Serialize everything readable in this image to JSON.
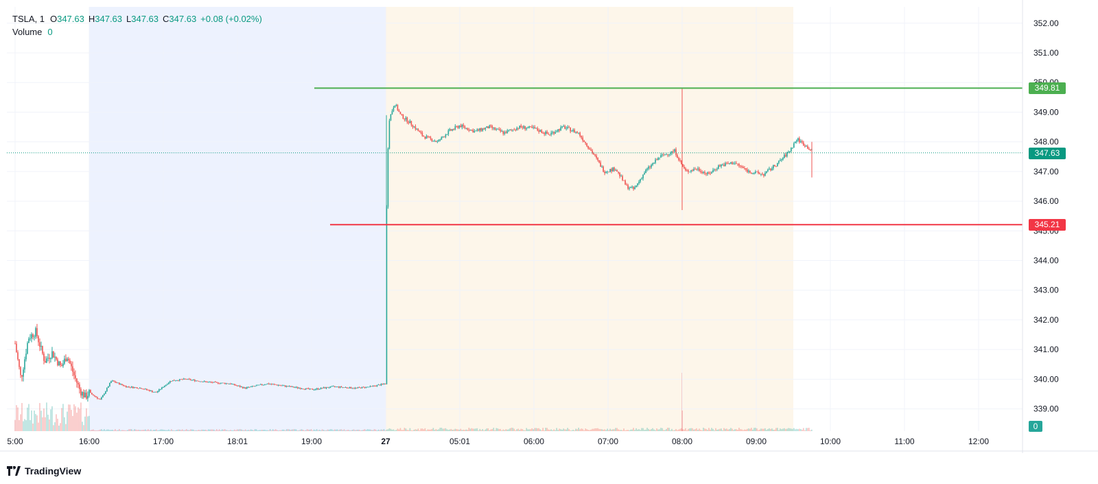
{
  "legend": {
    "symbol": "TSLA, 1",
    "open_label": "O",
    "open": "347.63",
    "high_label": "H",
    "high": "347.63",
    "low_label": "L",
    "low": "347.63",
    "close_label": "C",
    "close": "347.63",
    "change": "+0.08 (+0.02%)",
    "volume_label": "Volume",
    "volume": "0"
  },
  "brand": {
    "name": "TradingView"
  },
  "colors": {
    "up": "#26a69a",
    "down": "#ef5350",
    "premarket_bg": "#edf2fe",
    "regular_bg": "#fdf6ea",
    "green_line": "#4caf50",
    "red_line": "#f23645",
    "last_price": "#089981"
  },
  "chart_data": {
    "type": "candlestick",
    "symbol": "TSLA",
    "interval": "1",
    "y_axis": {
      "ticks": [
        339,
        340,
        341,
        342,
        343,
        344,
        345,
        346,
        347,
        348,
        349,
        350,
        351,
        352
      ],
      "tick_labels": [
        "339.00",
        "340.00",
        "341.00",
        "342.00",
        "343.00",
        "344.00",
        "345.00",
        "346.00",
        "347.00",
        "348.00",
        "349.00",
        "350.00",
        "351.00",
        "352.00"
      ],
      "range": [
        338.25,
        352.55
      ]
    },
    "x_axis": {
      "tick_labels": [
        "5:00",
        "16:00",
        "17:00",
        "18:01",
        "19:00",
        "27",
        "05:01",
        "06:00",
        "07:00",
        "08:00",
        "09:00",
        "10:00",
        "11:00",
        "12:00"
      ],
      "bold_label": "27"
    },
    "sessions": [
      {
        "name": "premarket-evening",
        "from": "16:00",
        "to": "27"
      },
      {
        "name": "premarket-morning",
        "from": "27",
        "to": "09:30"
      }
    ],
    "horizontal_lines": [
      {
        "name": "resistance",
        "value": 349.81,
        "label": "349.81"
      },
      {
        "name": "support",
        "value": 345.21,
        "label": "345.21"
      }
    ],
    "last_price": {
      "value": 347.63,
      "label": "347.63"
    },
    "volume_tag": "0",
    "price_path": [
      {
        "t": 0.0,
        "p": 341.2
      },
      {
        "t": 0.08,
        "p": 340.0
      },
      {
        "t": 0.18,
        "p": 341.4
      },
      {
        "t": 0.28,
        "p": 341.6
      },
      {
        "t": 0.4,
        "p": 340.6
      },
      {
        "t": 0.5,
        "p": 340.9
      },
      {
        "t": 0.62,
        "p": 340.4
      },
      {
        "t": 0.7,
        "p": 340.8
      },
      {
        "t": 0.8,
        "p": 340.1
      },
      {
        "t": 0.88,
        "p": 339.6
      },
      {
        "t": 0.95,
        "p": 339.4
      },
      {
        "t": 1.0,
        "p": 339.55
      },
      {
        "t": 1.15,
        "p": 339.3
      },
      {
        "t": 1.3,
        "p": 339.95
      },
      {
        "t": 1.5,
        "p": 339.75
      },
      {
        "t": 1.7,
        "p": 339.7
      },
      {
        "t": 1.9,
        "p": 339.55
      },
      {
        "t": 2.1,
        "p": 339.95
      },
      {
        "t": 2.3,
        "p": 340.0
      },
      {
        "t": 2.6,
        "p": 339.9
      },
      {
        "t": 2.9,
        "p": 339.85
      },
      {
        "t": 3.1,
        "p": 339.7
      },
      {
        "t": 3.4,
        "p": 339.85
      },
      {
        "t": 3.7,
        "p": 339.75
      },
      {
        "t": 4.0,
        "p": 339.65
      },
      {
        "t": 4.3,
        "p": 339.75
      },
      {
        "t": 4.6,
        "p": 339.7
      },
      {
        "t": 4.8,
        "p": 339.75
      },
      {
        "t": 5.0,
        "p": 339.85
      },
      {
        "t": 5.01,
        "p": 345.4
      },
      {
        "t": 5.04,
        "p": 348.7
      },
      {
        "t": 5.12,
        "p": 349.3
      },
      {
        "t": 5.2,
        "p": 348.9
      },
      {
        "t": 5.35,
        "p": 348.6
      },
      {
        "t": 5.5,
        "p": 348.2
      },
      {
        "t": 5.7,
        "p": 348.0
      },
      {
        "t": 5.85,
        "p": 348.35
      },
      {
        "t": 6.0,
        "p": 348.55
      },
      {
        "t": 6.2,
        "p": 348.35
      },
      {
        "t": 6.4,
        "p": 348.5
      },
      {
        "t": 6.6,
        "p": 348.3
      },
      {
        "t": 6.8,
        "p": 348.5
      },
      {
        "t": 7.0,
        "p": 348.45
      },
      {
        "t": 7.2,
        "p": 348.25
      },
      {
        "t": 7.4,
        "p": 348.5
      },
      {
        "t": 7.6,
        "p": 348.3
      },
      {
        "t": 7.8,
        "p": 347.6
      },
      {
        "t": 7.95,
        "p": 347.0
      },
      {
        "t": 8.1,
        "p": 347.1
      },
      {
        "t": 8.25,
        "p": 346.5
      },
      {
        "t": 8.35,
        "p": 346.4
      },
      {
        "t": 8.5,
        "p": 347.0
      },
      {
        "t": 8.7,
        "p": 347.5
      },
      {
        "t": 8.9,
        "p": 347.7
      },
      {
        "t": 9.0,
        "p": 347.2
      },
      {
        "t": 9.05,
        "p": 347.0
      },
      {
        "t": 9.2,
        "p": 347.1
      },
      {
        "t": 9.35,
        "p": 346.9
      },
      {
        "t": 9.5,
        "p": 347.2
      },
      {
        "t": 9.7,
        "p": 347.3
      },
      {
        "t": 9.9,
        "p": 347.0
      },
      {
        "t": 10.1,
        "p": 346.9
      },
      {
        "t": 10.3,
        "p": 347.3
      },
      {
        "t": 10.45,
        "p": 347.7
      },
      {
        "t": 10.55,
        "p": 348.1
      },
      {
        "t": 10.65,
        "p": 347.9
      },
      {
        "t": 10.75,
        "p": 347.7
      }
    ],
    "spikes": [
      {
        "t": 9.0,
        "high": 349.81,
        "low": 345.7
      },
      {
        "t": 5.01,
        "high": 348.9,
        "low": 345.21
      },
      {
        "t": 10.75,
        "high": 348.0,
        "low": 346.8
      }
    ]
  }
}
